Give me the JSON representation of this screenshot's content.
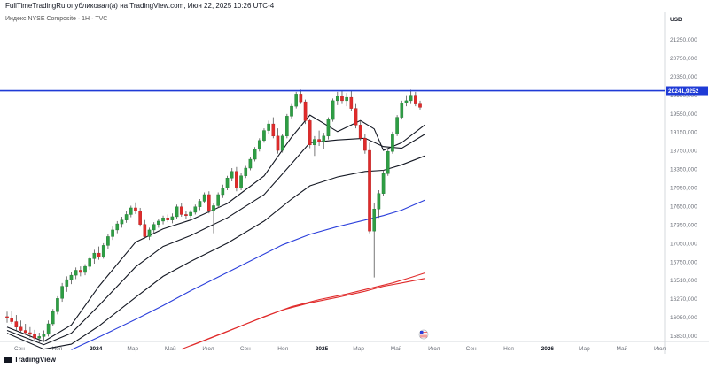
{
  "header": {
    "published_text": "FullTimeTradingRu опубликовал(а) на TradingView.com, Июн 22, 2025 10:26 UTC-4",
    "symbol_text": "Индекс NYSE Composite · 1Н · TVC"
  },
  "footer": {
    "logo_text": "TradingView"
  },
  "chart_data": {
    "type": "candlestick",
    "currency": "USD",
    "y_axis_labels": [
      "21250,000",
      "20750,000",
      "20350,000",
      "19950,000",
      "19550,000",
      "19150,000",
      "18750,000",
      "18350,000",
      "17950,000",
      "17650,000",
      "17350,000",
      "17050,000",
      "16750,000",
      "16510,000",
      "16270,000",
      "16050,000",
      "15830,000"
    ],
    "x_axis_labels": [
      "Сен",
      "Ноя",
      "2024",
      "Мар",
      "Май",
      "Июл",
      "Сен",
      "Ноя",
      "2025",
      "Мар",
      "Май",
      "Июл",
      "Сен",
      "Ноя",
      "2026",
      "Мар",
      "Май",
      "Июл"
    ],
    "bold_x_labels": [
      "2024",
      "2025",
      "2026"
    ],
    "horizontal_level": {
      "value": 20241.9252,
      "label": "20241,9252",
      "color": "#1f3bd6"
    },
    "colors": {
      "up": "#2e9e44",
      "down": "#e02b2b",
      "sma_black": "#131722",
      "sma_blue": "#2b3fdb",
      "sma_red": "#e02b2b"
    },
    "candles": [
      {
        "o": 16150,
        "h": 16240,
        "l": 16040,
        "c": 16120
      },
      {
        "o": 16120,
        "h": 16260,
        "l": 16020,
        "c": 16060
      },
      {
        "o": 16060,
        "h": 16180,
        "l": 15900,
        "c": 15960
      },
      {
        "o": 15960,
        "h": 16080,
        "l": 15870,
        "c": 15900
      },
      {
        "o": 15900,
        "h": 16020,
        "l": 15820,
        "c": 15860
      },
      {
        "o": 15860,
        "h": 15960,
        "l": 15770,
        "c": 15830
      },
      {
        "o": 15830,
        "h": 15910,
        "l": 15720,
        "c": 15760
      },
      {
        "o": 15760,
        "h": 15860,
        "l": 15680,
        "c": 15790
      },
      {
        "o": 15790,
        "h": 15900,
        "l": 15700,
        "c": 15830
      },
      {
        "o": 15830,
        "h": 16080,
        "l": 15790,
        "c": 16020
      },
      {
        "o": 16020,
        "h": 16290,
        "l": 15980,
        "c": 16240
      },
      {
        "o": 16240,
        "h": 16520,
        "l": 16190,
        "c": 16480
      },
      {
        "o": 16480,
        "h": 16760,
        "l": 16420,
        "c": 16700
      },
      {
        "o": 16700,
        "h": 16880,
        "l": 16600,
        "c": 16820
      },
      {
        "o": 16820,
        "h": 16960,
        "l": 16740,
        "c": 16900
      },
      {
        "o": 16900,
        "h": 17040,
        "l": 16830,
        "c": 16990
      },
      {
        "o": 16990,
        "h": 17060,
        "l": 16880,
        "c": 16950
      },
      {
        "o": 16950,
        "h": 17100,
        "l": 16900,
        "c": 17060
      },
      {
        "o": 17060,
        "h": 17240,
        "l": 17000,
        "c": 17200
      },
      {
        "o": 17200,
        "h": 17360,
        "l": 17110,
        "c": 17300
      },
      {
        "o": 17300,
        "h": 17420,
        "l": 17180,
        "c": 17230
      },
      {
        "o": 17230,
        "h": 17480,
        "l": 17200,
        "c": 17440
      },
      {
        "o": 17440,
        "h": 17640,
        "l": 17380,
        "c": 17600
      },
      {
        "o": 17600,
        "h": 17780,
        "l": 17540,
        "c": 17720
      },
      {
        "o": 17720,
        "h": 17880,
        "l": 17660,
        "c": 17830
      },
      {
        "o": 17830,
        "h": 17960,
        "l": 17760,
        "c": 17900
      },
      {
        "o": 17900,
        "h": 18060,
        "l": 17850,
        "c": 18000
      },
      {
        "o": 18000,
        "h": 18160,
        "l": 17950,
        "c": 18120
      },
      {
        "o": 18120,
        "h": 18220,
        "l": 18010,
        "c": 18060
      },
      {
        "o": 18060,
        "h": 18120,
        "l": 17780,
        "c": 17820
      },
      {
        "o": 17820,
        "h": 17900,
        "l": 17560,
        "c": 17600
      },
      {
        "o": 17600,
        "h": 17760,
        "l": 17540,
        "c": 17720
      },
      {
        "o": 17720,
        "h": 17860,
        "l": 17660,
        "c": 17820
      },
      {
        "o": 17820,
        "h": 17920,
        "l": 17760,
        "c": 17880
      },
      {
        "o": 17880,
        "h": 17980,
        "l": 17820,
        "c": 17940
      },
      {
        "o": 17940,
        "h": 18000,
        "l": 17860,
        "c": 17900
      },
      {
        "o": 17900,
        "h": 18020,
        "l": 17840,
        "c": 17960
      },
      {
        "o": 17960,
        "h": 18180,
        "l": 17920,
        "c": 18140
      },
      {
        "o": 18140,
        "h": 18200,
        "l": 17960,
        "c": 18000
      },
      {
        "o": 18000,
        "h": 18060,
        "l": 17920,
        "c": 17980
      },
      {
        "o": 17980,
        "h": 18080,
        "l": 17940,
        "c": 18040
      },
      {
        "o": 18040,
        "h": 18180,
        "l": 18000,
        "c": 18140
      },
      {
        "o": 18140,
        "h": 18280,
        "l": 18080,
        "c": 18240
      },
      {
        "o": 18240,
        "h": 18400,
        "l": 18200,
        "c": 18360
      },
      {
        "o": 18360,
        "h": 18420,
        "l": 18020,
        "c": 18060
      },
      {
        "o": 18060,
        "h": 18200,
        "l": 17660,
        "c": 18160
      },
      {
        "o": 18160,
        "h": 18400,
        "l": 18120,
        "c": 18360
      },
      {
        "o": 18360,
        "h": 18540,
        "l": 18300,
        "c": 18480
      },
      {
        "o": 18480,
        "h": 18700,
        "l": 18440,
        "c": 18660
      },
      {
        "o": 18660,
        "h": 18840,
        "l": 18600,
        "c": 18780
      },
      {
        "o": 18780,
        "h": 18860,
        "l": 18420,
        "c": 18480
      },
      {
        "o": 18480,
        "h": 18760,
        "l": 18440,
        "c": 18700
      },
      {
        "o": 18700,
        "h": 18880,
        "l": 18660,
        "c": 18840
      },
      {
        "o": 18840,
        "h": 19040,
        "l": 18800,
        "c": 19000
      },
      {
        "o": 19000,
        "h": 19220,
        "l": 18960,
        "c": 19180
      },
      {
        "o": 19180,
        "h": 19380,
        "l": 19140,
        "c": 19340
      },
      {
        "o": 19340,
        "h": 19560,
        "l": 19300,
        "c": 19520
      },
      {
        "o": 19520,
        "h": 19700,
        "l": 19460,
        "c": 19640
      },
      {
        "o": 19640,
        "h": 19760,
        "l": 19380,
        "c": 19420
      },
      {
        "o": 19420,
        "h": 19560,
        "l": 19100,
        "c": 19160
      },
      {
        "o": 19160,
        "h": 19460,
        "l": 19120,
        "c": 19420
      },
      {
        "o": 19420,
        "h": 19820,
        "l": 19380,
        "c": 19780
      },
      {
        "o": 19780,
        "h": 20000,
        "l": 19740,
        "c": 19960
      },
      {
        "o": 19960,
        "h": 20220,
        "l": 19920,
        "c": 20180
      },
      {
        "o": 20180,
        "h": 20260,
        "l": 20000,
        "c": 20040
      },
      {
        "o": 20040,
        "h": 20080,
        "l": 19640,
        "c": 19700
      },
      {
        "o": 19700,
        "h": 19740,
        "l": 19200,
        "c": 19260
      },
      {
        "o": 19260,
        "h": 19420,
        "l": 19060,
        "c": 19360
      },
      {
        "o": 19360,
        "h": 19520,
        "l": 19240,
        "c": 19320
      },
      {
        "o": 19320,
        "h": 19480,
        "l": 19180,
        "c": 19420
      },
      {
        "o": 19420,
        "h": 19760,
        "l": 19360,
        "c": 19720
      },
      {
        "o": 19720,
        "h": 20100,
        "l": 19680,
        "c": 20060
      },
      {
        "o": 20060,
        "h": 20220,
        "l": 19980,
        "c": 20140
      },
      {
        "o": 20140,
        "h": 20240,
        "l": 20000,
        "c": 20060
      },
      {
        "o": 20060,
        "h": 20200,
        "l": 19960,
        "c": 20120
      },
      {
        "o": 20120,
        "h": 20240,
        "l": 19880,
        "c": 19920
      },
      {
        "o": 19920,
        "h": 20000,
        "l": 19560,
        "c": 19620
      },
      {
        "o": 19620,
        "h": 19700,
        "l": 19340,
        "c": 19380
      },
      {
        "o": 19380,
        "h": 19460,
        "l": 19100,
        "c": 19160
      },
      {
        "o": 19160,
        "h": 19300,
        "l": 17660,
        "c": 17700
      },
      {
        "o": 17700,
        "h": 18200,
        "l": 16860,
        "c": 18100
      },
      {
        "o": 18100,
        "h": 18440,
        "l": 17940,
        "c": 18380
      },
      {
        "o": 18380,
        "h": 18800,
        "l": 18340,
        "c": 18740
      },
      {
        "o": 18740,
        "h": 19200,
        "l": 18700,
        "c": 19140
      },
      {
        "o": 19140,
        "h": 19500,
        "l": 19100,
        "c": 19460
      },
      {
        "o": 19460,
        "h": 19800,
        "l": 19420,
        "c": 19760
      },
      {
        "o": 19760,
        "h": 20060,
        "l": 19720,
        "c": 20020
      },
      {
        "o": 20020,
        "h": 20160,
        "l": 19960,
        "c": 20060
      },
      {
        "o": 20060,
        "h": 20260,
        "l": 20000,
        "c": 20160
      },
      {
        "o": 20160,
        "h": 20220,
        "l": 19960,
        "c": 20000
      },
      {
        "o": 20000,
        "h": 20060,
        "l": 19900,
        "c": 19940
      }
    ],
    "moving_averages": [
      {
        "color_key": "sma_black",
        "width": 1.1,
        "points": [
          [
            0,
            15960
          ],
          [
            8,
            15700
          ],
          [
            14,
            16000
          ],
          [
            20,
            16700
          ],
          [
            28,
            17500
          ],
          [
            34,
            17740
          ],
          [
            40,
            17900
          ],
          [
            48,
            18200
          ],
          [
            56,
            18700
          ],
          [
            62,
            19400
          ],
          [
            66,
            19800
          ],
          [
            72,
            19500
          ],
          [
            77,
            19700
          ],
          [
            80,
            19550
          ],
          [
            82,
            19160
          ],
          [
            86,
            19300
          ],
          [
            91,
            19620
          ]
        ]
      },
      {
        "color_key": "sma_black",
        "width": 1.1,
        "points": [
          [
            0,
            15900
          ],
          [
            8,
            15640
          ],
          [
            14,
            15850
          ],
          [
            20,
            16350
          ],
          [
            28,
            17050
          ],
          [
            34,
            17420
          ],
          [
            40,
            17620
          ],
          [
            48,
            17940
          ],
          [
            56,
            18360
          ],
          [
            62,
            18920
          ],
          [
            66,
            19300
          ],
          [
            72,
            19350
          ],
          [
            78,
            19380
          ],
          [
            82,
            19230
          ],
          [
            86,
            19200
          ],
          [
            91,
            19450
          ]
        ]
      },
      {
        "color_key": "sma_black",
        "width": 1.1,
        "points": [
          [
            0,
            15850
          ],
          [
            8,
            15560
          ],
          [
            14,
            15650
          ],
          [
            20,
            15980
          ],
          [
            28,
            16500
          ],
          [
            34,
            16880
          ],
          [
            40,
            17150
          ],
          [
            48,
            17480
          ],
          [
            56,
            17880
          ],
          [
            62,
            18280
          ],
          [
            66,
            18520
          ],
          [
            72,
            18680
          ],
          [
            78,
            18780
          ],
          [
            82,
            18800
          ],
          [
            86,
            18900
          ],
          [
            91,
            19060
          ]
        ]
      },
      {
        "color_key": "sma_blue",
        "width": 1.1,
        "points": [
          [
            14,
            15550
          ],
          [
            20,
            15780
          ],
          [
            28,
            16100
          ],
          [
            34,
            16350
          ],
          [
            40,
            16620
          ],
          [
            48,
            16950
          ],
          [
            54,
            17200
          ],
          [
            60,
            17450
          ],
          [
            66,
            17640
          ],
          [
            72,
            17780
          ],
          [
            78,
            17900
          ],
          [
            82,
            17980
          ],
          [
            86,
            18080
          ],
          [
            91,
            18260
          ]
        ]
      },
      {
        "color_key": "sma_red",
        "width": 1.1,
        "points": [
          [
            40,
            15620
          ],
          [
            48,
            15880
          ],
          [
            56,
            16150
          ],
          [
            62,
            16330
          ],
          [
            68,
            16460
          ],
          [
            74,
            16560
          ],
          [
            80,
            16680
          ],
          [
            84,
            16760
          ],
          [
            88,
            16860
          ],
          [
            91,
            16940
          ]
        ]
      },
      {
        "color_key": "sma_red",
        "width": 1.1,
        "points": [
          [
            38,
            15560
          ],
          [
            46,
            15820
          ],
          [
            54,
            16080
          ],
          [
            60,
            16270
          ],
          [
            66,
            16400
          ],
          [
            72,
            16500
          ],
          [
            78,
            16610
          ],
          [
            82,
            16700
          ],
          [
            86,
            16760
          ],
          [
            91,
            16840
          ]
        ]
      }
    ]
  }
}
